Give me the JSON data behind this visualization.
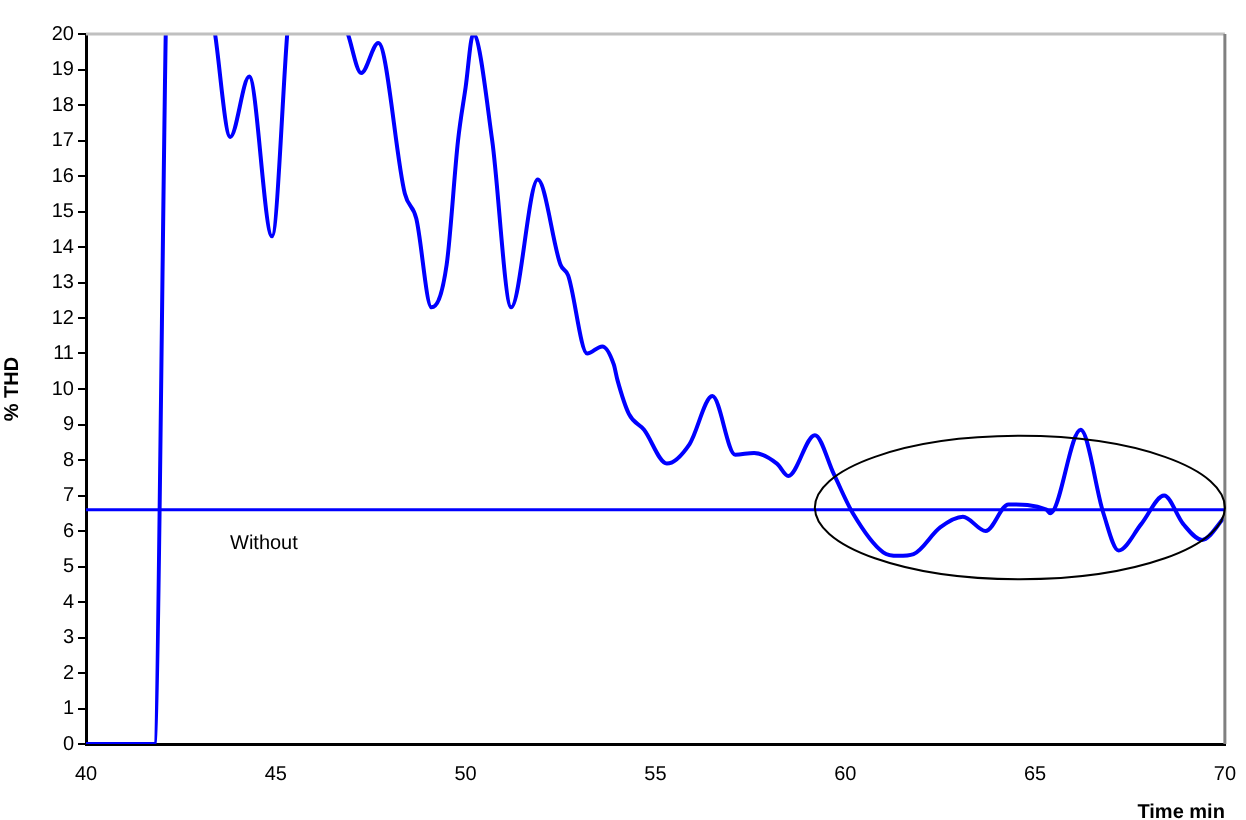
{
  "chart_data": {
    "type": "line",
    "xlabel": "Time min",
    "ylabel": "% THD",
    "xlim": [
      40,
      70
    ],
    "xticks": [
      40,
      45,
      50,
      55,
      60,
      65,
      70
    ],
    "ylim": [
      0,
      20
    ],
    "yticks": [
      0,
      1,
      2,
      3,
      4,
      5,
      6,
      7,
      8,
      9,
      10,
      11,
      12,
      13,
      14,
      15,
      16,
      17,
      18,
      19,
      20
    ],
    "grid": false,
    "legend": false,
    "marker": "none",
    "line_style": "solid",
    "ref_lines": [
      {
        "axis": "y",
        "value": 6.6,
        "label": "Without",
        "color": "#0000ff"
      }
    ],
    "series": [
      {
        "color": "#0000ff",
        "x": [
          40,
          41.8,
          42.1,
          42.8,
          43.4,
          43.8,
          44.3,
          44.9,
          45.3,
          46,
          46.9,
          47.25,
          47.7,
          48.4,
          48.7,
          49.1,
          49.5,
          49.8,
          50,
          50.2,
          50.7,
          51.2,
          51.9,
          52.5,
          52.7,
          53.2,
          53.6,
          53.9,
          54,
          54.3,
          54.7,
          55.3,
          55.9,
          56.5,
          57.1,
          57.6,
          58.2,
          58.5,
          59.2,
          59.7,
          60.2,
          61,
          61.4,
          61.8,
          62.5,
          63.1,
          63.7,
          64.3,
          65.3,
          65.4,
          66.2,
          66.8,
          67.2,
          67.8,
          68.4,
          68.9,
          69.4,
          70
        ],
        "values": [
          0,
          0,
          20,
          null,
          20,
          17.1,
          18.8,
          14.3,
          20,
          null,
          20,
          18.9,
          19.75,
          15.5,
          14.8,
          12.3,
          13.5,
          17,
          18.5,
          20,
          17,
          12.3,
          15.9,
          13.5,
          13.2,
          11,
          11.2,
          10.7,
          10.25,
          9.3,
          8.85,
          7.9,
          8.45,
          9.8,
          8.15,
          8.2,
          7.9,
          7.55,
          8.7,
          7.6,
          6.5,
          5.4,
          5.3,
          5.35,
          6.1,
          6.4,
          6,
          6.75,
          6.6,
          6.5,
          8.85,
          6.5,
          5.45,
          6.2,
          7,
          6.2,
          5.75,
          6.4
        ]
      }
    ]
  }
}
